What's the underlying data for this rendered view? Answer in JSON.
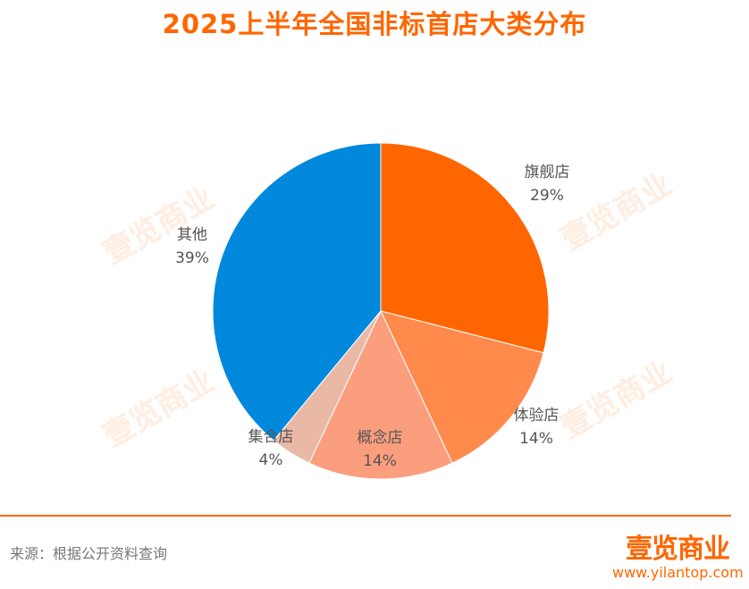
{
  "title": "2025上半年全国非标首店大类分布",
  "source": "来源：根据公开资料查询",
  "logo": {
    "name": "壹览商业",
    "url": "www.yilantop.com"
  },
  "watermark": "壹览商业",
  "colors": {
    "accent": "#ff6600"
  },
  "chart_data": {
    "type": "pie",
    "title": "2025上半年全国非标首店大类分布",
    "slices": [
      {
        "name": "旗舰店",
        "value": 29,
        "label": "29%",
        "color": "#ff6600"
      },
      {
        "name": "体验店",
        "value": 14,
        "label": "14%",
        "color": "#ff8a4c"
      },
      {
        "name": "概念店",
        "value": 14,
        "label": "14%",
        "color": "#fb9e7e"
      },
      {
        "name": "集合店",
        "value": 4,
        "label": "4%",
        "color": "#e9b9a6"
      },
      {
        "name": "其他",
        "value": 39,
        "label": "39%",
        "color": "#0088dd"
      }
    ]
  }
}
